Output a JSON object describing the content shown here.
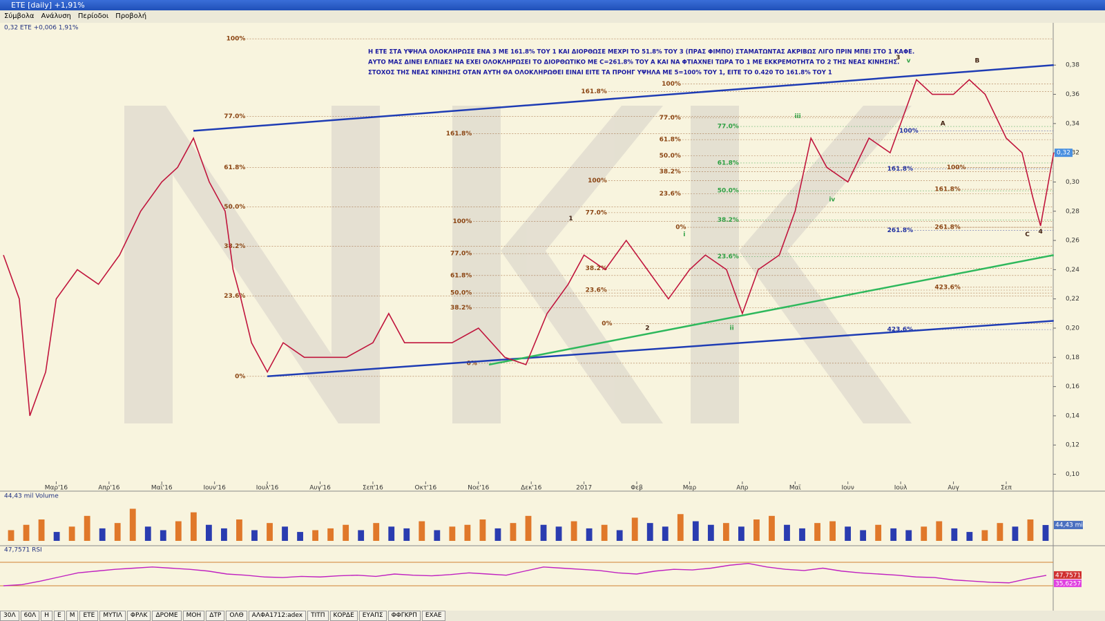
{
  "window": {
    "title": "ETE [daily] +1,91%"
  },
  "menu": [
    "Σύμβολα",
    "Ανάλυση",
    "Περίοδοι",
    "Προβολή"
  ],
  "chart_data": [
    {
      "type": "line",
      "legend": "0,32 ETE +0,006 1,91%",
      "price_tag": "0,32",
      "annotation": [
        "Η ΕΤΕ ΣΤΑ ΥΨΗΛΑ ΟΛΟΚΛΗΡΩΣΕ ΕΝΑ 3 ΜΕ 161.8% ΤΟΥ 1 ΚΑΙ ΔΙΟΡΘΩΣΕ ΜΕΧΡΙ ΤΟ 51.8% ΤΟΥ 3 (ΠΡΑΣ ΦΙΜΠΟ) ΣΤΑΜΑΤΩΝΤΑΣ ΑΚΡΙΒΩΣ ΛΙΓΟ ΠΡΙΝ ΜΠΕΙ ΣΤΟ 1 ΚΑΦΕ.",
        "ΑΥΤΟ ΜΑΣ ΔΙΝΕΙ ΕΛΠΙΔΕΣ ΝΑ ΕΧΕΙ ΟΛΟΚΛΗΡΩΣΕΙ ΤΟ ΔΙΟΡΘΩΤΙΚΟ ΜΕ C=261.8% ΤΟΥ Α ΚΑΙ ΝΑ ΦΤΙΑΧΝΕΙ ΤΩΡΑ ΤΟ 1 ΜΕ ΕΚΚΡΕΜΟΤΗΤΑ ΤΟ 2 ΤΗΣ ΝΕΑΣ ΚΙΝΗΣΗΣ.",
        "ΣΤΟΧΟΣ ΤΗΣ ΝΕΑΣ ΚΙΝΗΣΗΣ ΟΤΑΝ ΑΥΤΗ ΘΑ ΟΛΟΚΛΗΡΩΘΕΙ ΕΙΝΑΙ ΕΙΤΕ ΤΑ ΠΡΟΗΓ ΥΨΗΛΑ ΜΕ 5=100% ΤΟΥ 1, ΕΙΤΕ ΤΟ 0.420 ΤΟ 161.8% ΤΟΥ 1"
      ],
      "xlim": [
        0,
        19.89
      ],
      "ylim": [
        0.096,
        0.408
      ],
      "xticks": [
        {
          "value": 1,
          "label": "Μαρ'16"
        },
        {
          "value": 2,
          "label": "Απρ'16"
        },
        {
          "value": 3,
          "label": "Μαϊ'16"
        },
        {
          "value": 4,
          "label": "Ιουν'16"
        },
        {
          "value": 5,
          "label": "Ιουλ'16"
        },
        {
          "value": 6,
          "label": "Αυγ'16"
        },
        {
          "value": 7,
          "label": "Σεπ'16"
        },
        {
          "value": 8,
          "label": "Οκτ'16"
        },
        {
          "value": 9,
          "label": "Νοε'16"
        },
        {
          "value": 10,
          "label": "Δεκ'16"
        },
        {
          "value": 11,
          "label": "2017"
        },
        {
          "value": 12,
          "label": "Φεβ"
        },
        {
          "value": 13,
          "label": "Μαρ"
        },
        {
          "value": 14,
          "label": "Απρ"
        },
        {
          "value": 15,
          "label": "Μαϊ"
        },
        {
          "value": 16,
          "label": "Ιουν"
        },
        {
          "value": 17,
          "label": "Ιουλ"
        },
        {
          "value": 18,
          "label": "Αυγ"
        },
        {
          "value": 19,
          "label": "Σεπ"
        }
      ],
      "yticks": [
        {
          "value": 0.1,
          "label": "0,10"
        },
        {
          "value": 0.12,
          "label": "0,12"
        },
        {
          "value": 0.14,
          "label": "0,14"
        },
        {
          "value": 0.16,
          "label": "0,16"
        },
        {
          "value": 0.18,
          "label": "0,18"
        },
        {
          "value": 0.2,
          "label": "0,20"
        },
        {
          "value": 0.22,
          "label": "0,22"
        },
        {
          "value": 0.24,
          "label": "0,24"
        },
        {
          "value": 0.26,
          "label": "0,26"
        },
        {
          "value": 0.28,
          "label": "0,28"
        },
        {
          "value": 0.3,
          "label": "0,30"
        },
        {
          "value": 0.32,
          "label": "0,32"
        },
        {
          "value": 0.34,
          "label": "0,34"
        },
        {
          "value": 0.36,
          "label": "0,36"
        },
        {
          "value": 0.38,
          "label": "0,38"
        }
      ],
      "series": [
        {
          "name": "ETE",
          "color": "#c0143c",
          "x": [
            0,
            0.3,
            0.5,
            0.8,
            1,
            1.4,
            1.8,
            2.2,
            2.6,
            3,
            3.3,
            3.6,
            3.9,
            4.2,
            4.35,
            4.5,
            4.7,
            5,
            5.3,
            5.7,
            6,
            6.5,
            7,
            7.3,
            7.6,
            8,
            8.5,
            9,
            9.5,
            9.9,
            10.3,
            10.7,
            11,
            11.4,
            11.8,
            12.2,
            12.6,
            13,
            13.3,
            13.7,
            14,
            14.3,
            14.7,
            15,
            15.3,
            15.6,
            16,
            16.4,
            16.8,
            17,
            17.3,
            17.6,
            18,
            18.3,
            18.6,
            19,
            19.3,
            19.5,
            19.65,
            19.8,
            19.9
          ],
          "values": [
            0.25,
            0.22,
            0.14,
            0.17,
            0.22,
            0.24,
            0.23,
            0.25,
            0.28,
            0.3,
            0.31,
            0.33,
            0.3,
            0.28,
            0.24,
            0.22,
            0.19,
            0.17,
            0.19,
            0.18,
            0.18,
            0.18,
            0.19,
            0.21,
            0.19,
            0.19,
            0.19,
            0.2,
            0.18,
            0.175,
            0.21,
            0.23,
            0.25,
            0.24,
            0.26,
            0.24,
            0.22,
            0.24,
            0.25,
            0.24,
            0.21,
            0.24,
            0.25,
            0.28,
            0.33,
            0.31,
            0.3,
            0.33,
            0.32,
            0.34,
            0.37,
            0.36,
            0.36,
            0.37,
            0.36,
            0.33,
            0.32,
            0.29,
            0.27,
            0.3,
            0.32
          ]
        }
      ],
      "trendlines": [
        {
          "color": "#1e3cb4",
          "x": [
            3.6,
            19.9
          ],
          "y": [
            0.335,
            0.38
          ]
        },
        {
          "color": "#1e3cb4",
          "x": [
            5,
            19.9
          ],
          "y": [
            0.167,
            0.205
          ]
        },
        {
          "color": "#2eb85c",
          "x": [
            9.2,
            19.9
          ],
          "y": [
            0.175,
            0.25
          ]
        }
      ],
      "fib": [
        {
          "label": "100%",
          "x": 4.35,
          "y": 0.398,
          "color": "#8b4513"
        },
        {
          "label": "77.0%",
          "x": 4.35,
          "y": 0.345,
          "color": "#8b4513"
        },
        {
          "label": "61.8%",
          "x": 4.35,
          "y": 0.31,
          "color": "#8b4513"
        },
        {
          "label": "50.0%",
          "x": 4.35,
          "y": 0.283,
          "color": "#8b4513"
        },
        {
          "label": "38.2%",
          "x": 4.35,
          "y": 0.256,
          "color": "#8b4513"
        },
        {
          "label": "23.6%",
          "x": 4.35,
          "y": 0.222,
          "color": "#8b4513"
        },
        {
          "label": "0%",
          "x": 4.35,
          "y": 0.167,
          "color": "#8b4513"
        },
        {
          "label": "161.8%",
          "x": 8.64,
          "y": 0.333,
          "color": "#8b4513"
        },
        {
          "label": "100%",
          "x": 8.64,
          "y": 0.273,
          "color": "#8b4513"
        },
        {
          "label": "77.0%",
          "x": 8.64,
          "y": 0.251,
          "color": "#8b4513"
        },
        {
          "label": "61.8%",
          "x": 8.64,
          "y": 0.236,
          "color": "#8b4513"
        },
        {
          "label": "50.0%",
          "x": 8.64,
          "y": 0.224,
          "color": "#8b4513"
        },
        {
          "label": "38.2%",
          "x": 8.64,
          "y": 0.214,
          "color": "#8b4513"
        },
        {
          "label": "0%",
          "x": 8.74,
          "y": 0.176,
          "color": "#8b4513"
        },
        {
          "label": "161.8%",
          "x": 11.2,
          "y": 0.362,
          "color": "#8b4513"
        },
        {
          "label": "100%",
          "x": 11.2,
          "y": 0.301,
          "color": "#8b4513"
        },
        {
          "label": "77.0%",
          "x": 11.2,
          "y": 0.279,
          "color": "#8b4513"
        },
        {
          "label": "38.2%",
          "x": 11.2,
          "y": 0.241,
          "color": "#8b4513"
        },
        {
          "label": "23.6%",
          "x": 11.2,
          "y": 0.226,
          "color": "#8b4513"
        },
        {
          "label": "0%",
          "x": 11.3,
          "y": 0.203,
          "color": "#8b4513"
        },
        {
          "label": "100%",
          "x": 12.6,
          "y": 0.367,
          "color": "#8b4513"
        },
        {
          "label": "77.0%",
          "x": 12.6,
          "y": 0.344,
          "color": "#8b4513"
        },
        {
          "label": "61.8%",
          "x": 12.6,
          "y": 0.329,
          "color": "#8b4513"
        },
        {
          "label": "50.0%",
          "x": 12.6,
          "y": 0.318,
          "color": "#8b4513"
        },
        {
          "label": "38.2%",
          "x": 12.6,
          "y": 0.307,
          "color": "#8b4513"
        },
        {
          "label": "23.6%",
          "x": 12.6,
          "y": 0.292,
          "color": "#8b4513"
        },
        {
          "label": "0%",
          "x": 12.7,
          "y": 0.269,
          "color": "#8b4513"
        },
        {
          "label": "77.0%",
          "x": 13.7,
          "y": 0.338,
          "color": "#2ea043"
        },
        {
          "label": "61.8%",
          "x": 13.7,
          "y": 0.313,
          "color": "#2ea043"
        },
        {
          "label": "50.0%",
          "x": 13.7,
          "y": 0.294,
          "color": "#2ea043"
        },
        {
          "label": "38.2%",
          "x": 13.7,
          "y": 0.274,
          "color": "#2ea043"
        },
        {
          "label": "23.6%",
          "x": 13.7,
          "y": 0.249,
          "color": "#2ea043"
        },
        {
          "label": "100%",
          "x": 17.1,
          "y": 0.335,
          "color": "#2030a0"
        },
        {
          "label": "161.8%",
          "x": 17.0,
          "y": 0.309,
          "color": "#2030a0"
        },
        {
          "label": "261.8%",
          "x": 17.0,
          "y": 0.267,
          "color": "#2030a0"
        },
        {
          "label": "423.6%",
          "x": 17.0,
          "y": 0.199,
          "color": "#2030a0"
        },
        {
          "label": "100%",
          "x": 18.0,
          "y": 0.31,
          "color": "#8b4513"
        },
        {
          "label": "161.8%",
          "x": 17.9,
          "y": 0.295,
          "color": "#8b4513"
        },
        {
          "label": "261.8%",
          "x": 17.9,
          "y": 0.269,
          "color": "#8b4513"
        },
        {
          "label": "423.6%",
          "x": 17.9,
          "y": 0.228,
          "color": "#8b4513"
        }
      ],
      "waves": [
        {
          "label": "1",
          "x": 10.75,
          "y": 0.275
        },
        {
          "label": "2",
          "x": 12.2,
          "y": 0.2
        },
        {
          "label": "3",
          "x": 16.95,
          "y": 0.385
        },
        {
          "label": "B",
          "x": 18.45,
          "y": 0.383
        },
        {
          "label": "A",
          "x": 17.8,
          "y": 0.34
        },
        {
          "label": "C",
          "x": 19.4,
          "y": 0.264
        },
        {
          "label": "4",
          "x": 19.65,
          "y": 0.266
        },
        {
          "label": "i",
          "x": 12.9,
          "y": 0.264
        },
        {
          "label": "ii",
          "x": 13.8,
          "y": 0.2
        },
        {
          "label": "iii",
          "x": 15.05,
          "y": 0.345
        },
        {
          "label": "iv",
          "x": 15.7,
          "y": 0.288
        },
        {
          "label": "v",
          "x": 17.15,
          "y": 0.383
        }
      ]
    },
    {
      "type": "bar",
      "title": "44,43 mil Volume",
      "value_tag": "44,43 mil",
      "ylim": [
        0,
        120
      ],
      "up_color": "#e0782a",
      "down_color": "#2a3cb0",
      "values": [
        30,
        45,
        60,
        25,
        40,
        70,
        35,
        50,
        90,
        40,
        30,
        55,
        80,
        45,
        35,
        60,
        30,
        50,
        40,
        25,
        30,
        35,
        45,
        30,
        50,
        40,
        35,
        55,
        30,
        40,
        45,
        60,
        35,
        50,
        70,
        45,
        40,
        55,
        35,
        45,
        30,
        65,
        50,
        40,
        75,
        55,
        45,
        50,
        40,
        60,
        70,
        45,
        35,
        50,
        55,
        40,
        30,
        45,
        35,
        30,
        40,
        55,
        35,
        25,
        30,
        50,
        40,
        60,
        44.43
      ]
    },
    {
      "type": "line",
      "title": "47,7571 RSI",
      "value_tags": [
        "47,7571",
        "35,6257"
      ],
      "ylim": [
        10,
        90
      ],
      "levels": [
        70,
        30
      ],
      "color": "#c020c0",
      "values": [
        30,
        32,
        38,
        45,
        52,
        55,
        58,
        60,
        62,
        60,
        58,
        55,
        50,
        48,
        45,
        44,
        46,
        45,
        47,
        48,
        46,
        50,
        48,
        47,
        49,
        52,
        50,
        48,
        55,
        62,
        60,
        58,
        56,
        52,
        50,
        55,
        58,
        57,
        60,
        65,
        68,
        62,
        58,
        56,
        60,
        55,
        52,
        50,
        48,
        45,
        44,
        40,
        38,
        36,
        35,
        42,
        47.76
      ]
    }
  ],
  "tabs": [
    "30Λ",
    "60Λ",
    "H",
    "E",
    "M",
    "ETE",
    "ΜΥΤΙΛ",
    "ΦΡΛΚ",
    "ΔΡΟΜΕ",
    "ΜΟΗ",
    "ΔΤΡ",
    "ΟΛΘ",
    "ΑΛΦΑ1712:adex",
    "ΤΙΤΠ",
    "ΚΟΡΔΕ",
    "ΕΥΑΠΣ",
    "ΦΦΓΚΡΠ",
    "ΕΧΑΕ"
  ]
}
